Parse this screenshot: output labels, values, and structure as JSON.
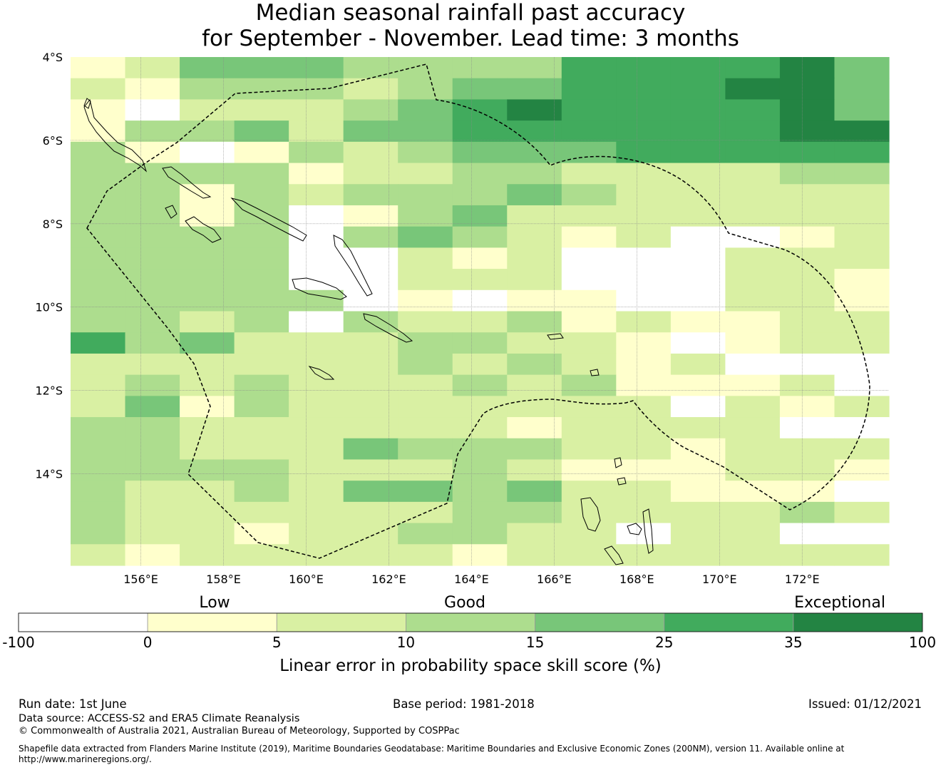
{
  "title": {
    "line1": "Median seasonal rainfall past accuracy",
    "line2": "for September - November. Lead time: 3 months"
  },
  "map": {
    "lon_range": [
      154.3,
      174.1
    ],
    "lat_range": [
      -16.2,
      -4.0
    ],
    "lat_ticks": [
      {
        "value": -4,
        "label": "4°S"
      },
      {
        "value": -6,
        "label": "6°S"
      },
      {
        "value": -8,
        "label": "8°S"
      },
      {
        "value": -10,
        "label": "10°S"
      },
      {
        "value": -12,
        "label": "12°S"
      },
      {
        "value": -14,
        "label": "14°S"
      }
    ],
    "lon_ticks": [
      {
        "value": 156,
        "label": "156°E"
      },
      {
        "value": 158,
        "label": "158°E"
      },
      {
        "value": 160,
        "label": "160°E"
      },
      {
        "value": 162,
        "label": "162°E"
      },
      {
        "value": 164,
        "label": "164°E"
      },
      {
        "value": 166,
        "label": "166°E"
      },
      {
        "value": 168,
        "label": "168°E"
      },
      {
        "value": 170,
        "label": "170°E"
      },
      {
        "value": 172,
        "label": "172°E"
      }
    ],
    "grid_lines": true,
    "skill_grid_rows": [
      "124443333555564",
      "213332344555664",
      "102223456555564",
      "133424455555566",
      "310132344455555",
      "333312233222233",
      "331323334322222",
      "331301342222222",
      "333303432120012",
      "333300212000222",
      "333300222000221",
      "333330101100221",
      "332303223121122",
      "534222332210122",
      "222222323212000",
      "232322232311120",
      "241322222220212",
      "332222221222200",
      "332224333221222",
      "333322232111221",
      "322324434221110",
      "322222233222232",
      "322122332202200",
      "212222212222222"
    ],
    "cell_colors": [
      "#ffffff",
      "#ffffcc",
      "#d9f0a3",
      "#addd8e",
      "#78c679",
      "#41ab5d",
      "#238443"
    ],
    "eez_boundary": "Solomon Islands EEZ (dashed)"
  },
  "colorbar": {
    "headings": {
      "low": "Low",
      "good": "Good",
      "exceptional": "Exceptional"
    },
    "ticks": [
      "-100",
      "0",
      "5",
      "10",
      "15",
      "25",
      "35",
      "100"
    ],
    "segment_colors": [
      "#ffffff",
      "#ffffcc",
      "#d9f0a3",
      "#addd8e",
      "#78c679",
      "#41ab5d",
      "#238443"
    ],
    "axis_label": "Linear error in probability space skill score (%)"
  },
  "footer": {
    "run_date": "Run date: 1st June",
    "base_period": "Base period: 1981-2018",
    "issued": "Issued: 01/12/2021",
    "data_source": "Data source: ACCESS-S2 and ERA5 Climate Reanalysis",
    "copyright": "© Commonwealth of Australia 2021, Australian Bureau of Meteorology, Supported by COSPPac",
    "shapefile_line1": "Shapefile data extracted from Flanders Marine Institute (2019), Maritime Boundaries Geodatabase: Maritime Boundaries and Exclusive Economic Zones (200NM), version 11. Available online at",
    "shapefile_line2": "http://www.marineregions.org/."
  }
}
